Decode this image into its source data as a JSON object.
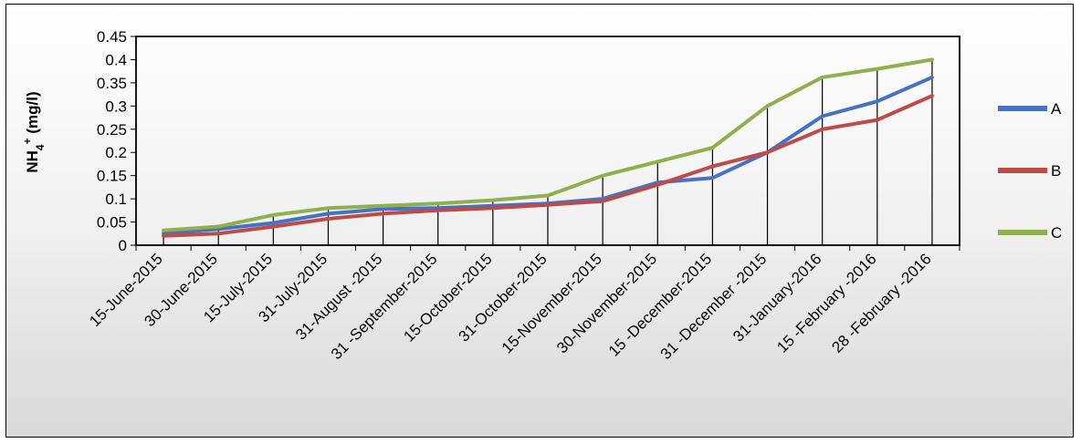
{
  "chart_data": {
    "type": "line",
    "ylabel_main": "NH",
    "ylabel_sub": "4",
    "ylabel_sup": "+",
    "ylabel_unit": " (mg/l)",
    "ylim": [
      0,
      0.45
    ],
    "yticks": [
      "0",
      "0.05",
      "0.1",
      "0.15",
      "0.2",
      "0.25",
      "0.3",
      "0.35",
      "0.4",
      "0.45"
    ],
    "categories": [
      "15-June-2015",
      "30-June-2015",
      "15-July-2015",
      "31-July-2015",
      "31-August -2015",
      "31 -September-2015",
      "15-October-2015",
      "31-October-2015",
      "15-November-2015",
      "30-November-2015",
      "15 -December-2015",
      "31 -December -2015",
      "31-January-2016",
      "15 -February -2016",
      "28 -February -2016"
    ],
    "series": [
      {
        "name": "A",
        "color": "#4472c4",
        "values": [
          0.025,
          0.035,
          0.048,
          0.068,
          0.078,
          0.08,
          0.085,
          0.09,
          0.1,
          0.135,
          0.145,
          0.2,
          0.278,
          0.31,
          0.362
        ]
      },
      {
        "name": "B",
        "color": "#be4b48",
        "values": [
          0.02,
          0.025,
          0.04,
          0.057,
          0.068,
          0.075,
          0.08,
          0.087,
          0.095,
          0.13,
          0.17,
          0.2,
          0.25,
          0.27,
          0.322
        ]
      },
      {
        "name": "C",
        "color": "#8fb04a",
        "values": [
          0.032,
          0.04,
          0.065,
          0.08,
          0.085,
          0.09,
          0.097,
          0.107,
          0.15,
          0.18,
          0.21,
          0.3,
          0.362,
          0.38,
          0.4
        ]
      }
    ],
    "drop_lines": true,
    "grid": false,
    "legend_position": "right"
  }
}
